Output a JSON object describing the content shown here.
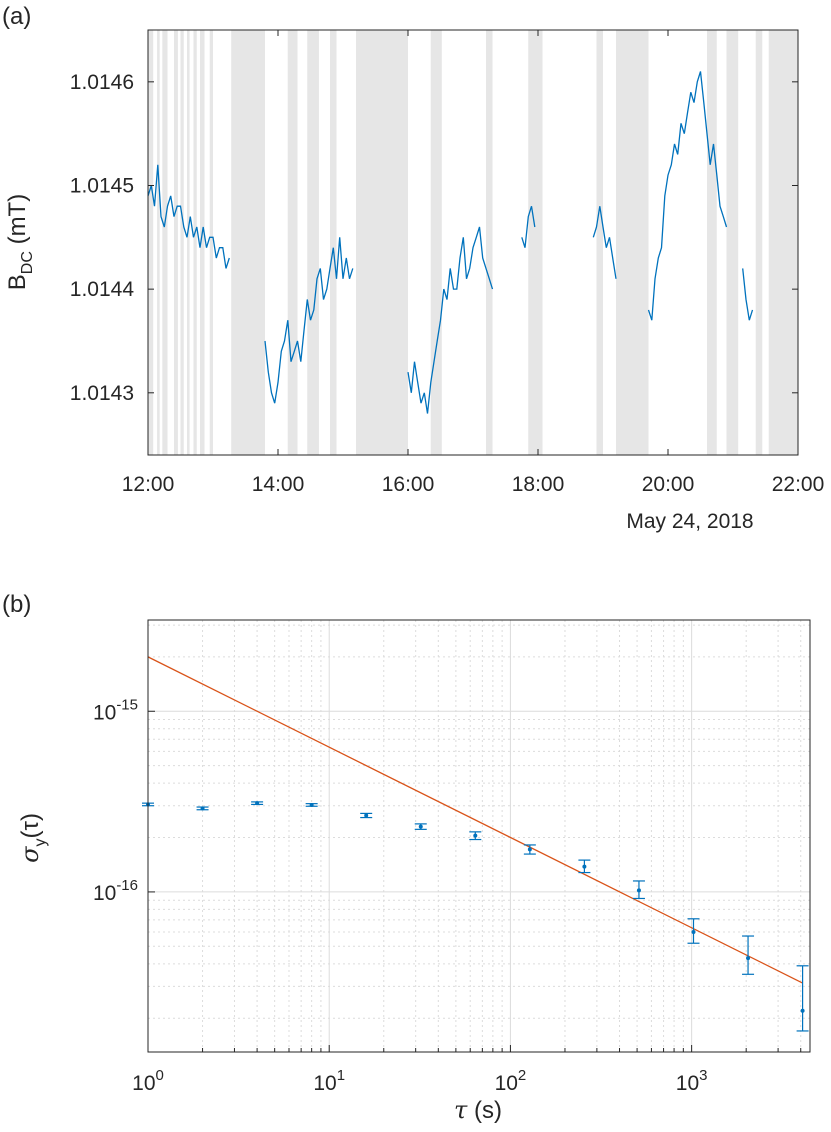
{
  "chart_data": [
    {
      "type": "line",
      "panel_label": "(a)",
      "ylabel": "B_DC (mT)",
      "ylabel_main": "B",
      "ylabel_sub": "DC",
      "ylabel_unit": " (mT)",
      "x_ticks": [
        "12:00",
        "14:00",
        "16:00",
        "18:00",
        "20:00",
        "22:00"
      ],
      "x_secondary_label": "May 24, 2018",
      "y_ticks": [
        "1.0143",
        "1.0144",
        "1.0145",
        "1.0146"
      ],
      "xlim_hours": [
        12,
        22
      ],
      "ylim": [
        1.01424,
        1.01465
      ],
      "shaded_regions_hours": [
        [
          12.0,
          12.08
        ],
        [
          12.14,
          12.18
        ],
        [
          12.22,
          12.3
        ],
        [
          12.4,
          12.46
        ],
        [
          12.5,
          12.55
        ],
        [
          12.6,
          12.64
        ],
        [
          12.7,
          12.75
        ],
        [
          12.8,
          12.87
        ],
        [
          12.95,
          13.0
        ],
        [
          13.28,
          13.8
        ],
        [
          14.15,
          14.3
        ],
        [
          14.45,
          14.63
        ],
        [
          14.8,
          14.9
        ],
        [
          15.2,
          16.0
        ],
        [
          16.35,
          16.52
        ],
        [
          17.2,
          17.3
        ],
        [
          17.85,
          18.07
        ],
        [
          18.9,
          19.0
        ],
        [
          19.2,
          19.7
        ],
        [
          20.6,
          20.75
        ],
        [
          20.9,
          21.08
        ],
        [
          21.35,
          21.45
        ],
        [
          21.55,
          22.0
        ]
      ],
      "series": [
        {
          "segments": [
            {
              "x": [
                12.0,
                12.05,
                12.1,
                12.15,
                12.2,
                12.25,
                12.3,
                12.35,
                12.4,
                12.45,
                12.5,
                12.55,
                12.6,
                12.65,
                12.7,
                12.75,
                12.8,
                12.85,
                12.9,
                12.95,
                13.0,
                13.05,
                13.1,
                13.15,
                13.2,
                13.25
              ],
              "y": [
                1.01449,
                1.0145,
                1.01448,
                1.01452,
                1.01447,
                1.01446,
                1.01448,
                1.01449,
                1.01447,
                1.01448,
                1.01448,
                1.01446,
                1.01445,
                1.01447,
                1.01445,
                1.01446,
                1.01444,
                1.01446,
                1.01444,
                1.01445,
                1.01445,
                1.01443,
                1.01444,
                1.01444,
                1.01442,
                1.01443
              ]
            },
            {
              "x": [
                13.8,
                13.85,
                13.9,
                13.95,
                14.0,
                14.05,
                14.1,
                14.15,
                14.2,
                14.25,
                14.3,
                14.35,
                14.4,
                14.45,
                14.5,
                14.55,
                14.6,
                14.65,
                14.7,
                14.75,
                14.8,
                14.85,
                14.9,
                14.95,
                15.0,
                15.05,
                15.1,
                15.15
              ],
              "y": [
                1.01435,
                1.01432,
                1.0143,
                1.01429,
                1.01431,
                1.01434,
                1.01435,
                1.01437,
                1.01433,
                1.01434,
                1.01435,
                1.01433,
                1.01436,
                1.01439,
                1.01437,
                1.01438,
                1.01441,
                1.01442,
                1.01439,
                1.0144,
                1.01442,
                1.01444,
                1.01441,
                1.01445,
                1.01441,
                1.01443,
                1.01441,
                1.01442
              ]
            },
            {
              "x": [
                16.0,
                16.05,
                16.1,
                16.15,
                16.2,
                16.25,
                16.3,
                16.35,
                16.4,
                16.45,
                16.5,
                16.55,
                16.6,
                16.65,
                16.7,
                16.75,
                16.8,
                16.85,
                16.9,
                16.95,
                17.0,
                17.05,
                17.1,
                17.15,
                17.2,
                17.25,
                17.3
              ],
              "y": [
                1.01432,
                1.0143,
                1.01433,
                1.01431,
                1.01429,
                1.0143,
                1.01428,
                1.01431,
                1.01433,
                1.01435,
                1.01437,
                1.0144,
                1.01439,
                1.01442,
                1.0144,
                1.0144,
                1.01443,
                1.01445,
                1.01441,
                1.01442,
                1.01444,
                1.01445,
                1.01446,
                1.01443,
                1.01442,
                1.01441,
                1.0144
              ]
            },
            {
              "x": [
                17.75,
                17.8,
                17.85,
                17.9,
                17.95
              ],
              "y": [
                1.01445,
                1.01444,
                1.01447,
                1.01448,
                1.01446
              ]
            },
            {
              "x": [
                18.85,
                18.9,
                18.95,
                19.0,
                19.05,
                19.1,
                19.15,
                19.2
              ],
              "y": [
                1.01445,
                1.01446,
                1.01448,
                1.01446,
                1.01444,
                1.01445,
                1.01443,
                1.01441
              ]
            },
            {
              "x": [
                19.7,
                19.75,
                19.8,
                19.85,
                19.9,
                19.95,
                20.0,
                20.05,
                20.1,
                20.15,
                20.2,
                20.25,
                20.3,
                20.35,
                20.4,
                20.45,
                20.5,
                20.55,
                20.6,
                20.65,
                20.7,
                20.75,
                20.8,
                20.85,
                20.9
              ],
              "y": [
                1.01438,
                1.01437,
                1.01441,
                1.01443,
                1.01444,
                1.01449,
                1.01451,
                1.01452,
                1.01454,
                1.01453,
                1.01456,
                1.01455,
                1.01457,
                1.01459,
                1.01458,
                1.0146,
                1.01461,
                1.01458,
                1.01455,
                1.01452,
                1.01454,
                1.01451,
                1.01448,
                1.01447,
                1.01446
              ]
            },
            {
              "x": [
                21.15,
                21.2,
                21.25,
                21.3
              ],
              "y": [
                1.01442,
                1.01439,
                1.01437,
                1.01438
              ]
            }
          ]
        }
      ]
    },
    {
      "type": "scatter",
      "panel_label": "(b)",
      "xlabel": "τ (s)",
      "xlabel_sym": "τ",
      "xlabel_unit": " (s)",
      "ylabel": "σ_y(τ)",
      "ylabel_sym": "σ",
      "ylabel_sub": "y",
      "ylabel_arg": "(τ)",
      "x_scale": "log",
      "y_scale": "log",
      "x_ticks": [
        {
          "value": 1,
          "base": "10",
          "exp": "0"
        },
        {
          "value": 10,
          "base": "10",
          "exp": "1"
        },
        {
          "value": 100,
          "base": "10",
          "exp": "2"
        },
        {
          "value": 1000,
          "base": "10",
          "exp": "3"
        }
      ],
      "y_ticks": [
        {
          "value": 1e-16,
          "base": "10",
          "exp": "-16"
        },
        {
          "value": 1e-15,
          "base": "10",
          "exp": "-15"
        }
      ],
      "xlim": [
        1,
        4500
      ],
      "ylim": [
        1.3e-17,
        3.2e-15
      ],
      "grid": true,
      "series": [
        {
          "x": [
            1,
            2,
            4,
            8,
            16,
            32,
            64,
            128,
            256,
            512,
            1024,
            2048,
            4096
          ],
          "y": [
            3.05e-16,
            2.9e-16,
            3.1e-16,
            3.03e-16,
            2.65e-16,
            2.3e-16,
            2.05e-16,
            1.72e-16,
            1.38e-16,
            1.02e-16,
            6e-17,
            4.3e-17,
            2.2e-17
          ],
          "err_low": [
            3e-16,
            2.85e-16,
            3.05e-16,
            2.98e-16,
            2.58e-16,
            2.22e-16,
            1.95e-16,
            1.62e-16,
            1.28e-16,
            9.2e-17,
            5.2e-17,
            3.5e-17,
            1.7e-17
          ],
          "err_high": [
            3.1e-16,
            2.95e-16,
            3.15e-16,
            3.08e-16,
            2.72e-16,
            2.38e-16,
            2.15e-16,
            1.82e-16,
            1.5e-16,
            1.15e-16,
            7.1e-17,
            5.7e-17,
            3.9e-17
          ]
        },
        {
          "type": "line",
          "x": [
            1,
            4096
          ],
          "y": [
            2e-15,
            3.13e-17
          ]
        }
      ]
    }
  ],
  "colors": {
    "data": "#0072bd",
    "fit": "#d95319",
    "shade": "#e6e6e6",
    "axis": "#262626"
  }
}
